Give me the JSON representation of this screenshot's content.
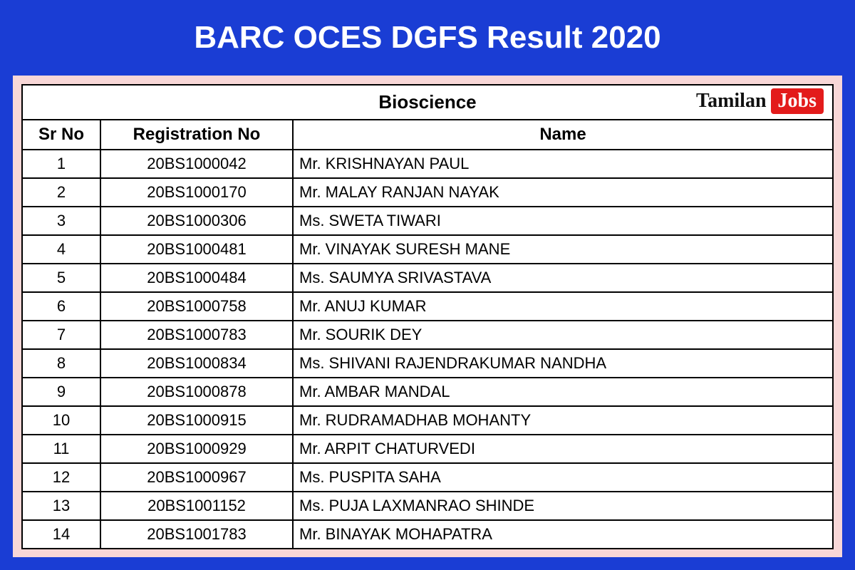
{
  "page": {
    "title": "BARC OCES DGFS Result 2020",
    "background_color": "#1a3dd4",
    "title_color": "#ffffff",
    "title_fontsize": 44,
    "inner_background": "#f8d7d7"
  },
  "watermark": {
    "part1": "Tamilan",
    "part2": "Jobs",
    "part1_color": "#111111",
    "part2_bg": "#e31b1b",
    "part2_color": "#ffffff"
  },
  "table": {
    "category": "Bioscience",
    "columns": {
      "sr": "Sr No",
      "reg": "Registration No",
      "name": "Name"
    },
    "border_color": "#000000",
    "cell_bg": "#ffffff",
    "header_fontsize": 24,
    "cell_fontsize": 22,
    "col_widths": {
      "sr": 110,
      "reg": 270
    },
    "rows": [
      {
        "sr": "1",
        "reg": "20BS1000042",
        "name": "Mr. KRISHNAYAN  PAUL"
      },
      {
        "sr": "2",
        "reg": "20BS1000170",
        "name": "Mr. MALAY RANJAN NAYAK"
      },
      {
        "sr": "3",
        "reg": "20BS1000306",
        "name": "Ms. SWETA  TIWARI"
      },
      {
        "sr": "4",
        "reg": "20BS1000481",
        "name": "Mr. VINAYAK SURESH MANE"
      },
      {
        "sr": "5",
        "reg": "20BS1000484",
        "name": "Ms. SAUMYA  SRIVASTAVA"
      },
      {
        "sr": "6",
        "reg": "20BS1000758",
        "name": "Mr. ANUJ  KUMAR"
      },
      {
        "sr": "7",
        "reg": "20BS1000783",
        "name": "Mr. SOURIK  DEY"
      },
      {
        "sr": "8",
        "reg": "20BS1000834",
        "name": "Ms. SHIVANI RAJENDRAKUMAR NANDHA"
      },
      {
        "sr": "9",
        "reg": "20BS1000878",
        "name": "Mr. AMBAR  MANDAL"
      },
      {
        "sr": "10",
        "reg": "20BS1000915",
        "name": "Mr. RUDRAMADHAB  MOHANTY"
      },
      {
        "sr": "11",
        "reg": "20BS1000929",
        "name": "Mr. ARPIT  CHATURVEDI"
      },
      {
        "sr": "12",
        "reg": "20BS1000967",
        "name": "Ms. PUSPITA  SAHA"
      },
      {
        "sr": "13",
        "reg": "20BS1001152",
        "name": "Ms. PUJA LAXMANRAO SHINDE"
      },
      {
        "sr": "14",
        "reg": "20BS1001783",
        "name": "Mr. BINAYAK  MOHAPATRA"
      }
    ]
  }
}
